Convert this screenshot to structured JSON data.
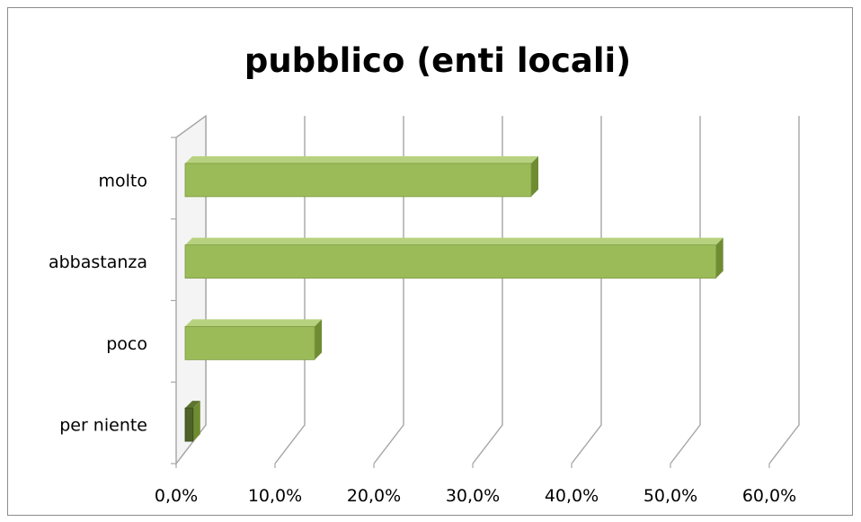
{
  "chart_data": {
    "type": "bar",
    "orientation": "horizontal",
    "title": "pubblico (enti locali)",
    "xlabel": "",
    "ylabel": "",
    "categories": [
      "molto",
      "abbastanza",
      "poco",
      "per niente"
    ],
    "values": [
      35.0,
      53.7,
      13.1,
      0.8
    ],
    "xlim": [
      0,
      60
    ],
    "x_ticks": [
      "0,0%",
      "10,0%",
      "20,0%",
      "30,0%",
      "40,0%",
      "50,0%",
      "60,0%"
    ],
    "grid": true,
    "legend": "none",
    "style": "3d",
    "colors": {
      "bar_face": "#9bbb59",
      "bar_top": "#b7d27f",
      "bar_side": "#6f8c32",
      "small_bar": "#4f6228",
      "grid": "#a6a6a6"
    }
  }
}
